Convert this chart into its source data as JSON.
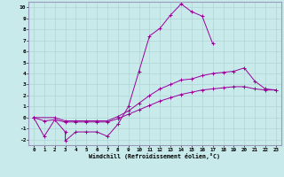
{
  "xlabel": "Windchill (Refroidissement éolien,°C)",
  "background_color": "#c8eaea",
  "line_color": "#990099",
  "grid_color": "#b0d4d4",
  "spine_color": "#9999bb",
  "xlim": [
    -0.5,
    23.5
  ],
  "ylim": [
    -2.5,
    10.5
  ],
  "xticks": [
    0,
    1,
    2,
    3,
    4,
    5,
    6,
    7,
    8,
    9,
    10,
    11,
    12,
    13,
    14,
    15,
    16,
    17,
    18,
    19,
    20,
    21,
    22,
    23
  ],
  "yticks": [
    -2,
    -1,
    0,
    1,
    2,
    3,
    4,
    5,
    6,
    7,
    8,
    9,
    10
  ],
  "line1_x": [
    0,
    1,
    2,
    3,
    3,
    4,
    5,
    6,
    7,
    8,
    9,
    10,
    11,
    12,
    13,
    14,
    15,
    16,
    17
  ],
  "line1_y": [
    0,
    -1.7,
    -0.2,
    -1.3,
    -2.1,
    -1.3,
    -1.3,
    -1.3,
    -1.7,
    -0.6,
    1.0,
    4.2,
    7.4,
    8.1,
    9.3,
    10.3,
    9.6,
    9.2,
    6.7
  ],
  "line2_x": [
    0,
    2,
    3,
    4,
    5,
    6,
    7,
    8,
    9,
    10,
    11,
    12,
    13,
    14,
    15,
    16,
    17,
    18,
    19,
    20,
    21,
    22,
    23
  ],
  "line2_y": [
    0,
    0.0,
    -0.3,
    -0.3,
    -0.3,
    -0.3,
    -0.3,
    0.1,
    0.6,
    1.3,
    2.0,
    2.6,
    3.0,
    3.4,
    3.5,
    3.8,
    4.0,
    4.1,
    4.2,
    4.5,
    3.3,
    2.6,
    2.5
  ],
  "line3_x": [
    0,
    1,
    2,
    3,
    4,
    5,
    6,
    7,
    8,
    9,
    10,
    11,
    12,
    13,
    14,
    15,
    16,
    17,
    18,
    19,
    20,
    21,
    22,
    23
  ],
  "line3_y": [
    0,
    -0.3,
    -0.2,
    -0.4,
    -0.4,
    -0.4,
    -0.4,
    -0.4,
    -0.1,
    0.3,
    0.7,
    1.1,
    1.5,
    1.8,
    2.1,
    2.3,
    2.5,
    2.6,
    2.7,
    2.8,
    2.8,
    2.6,
    2.5,
    2.5
  ]
}
